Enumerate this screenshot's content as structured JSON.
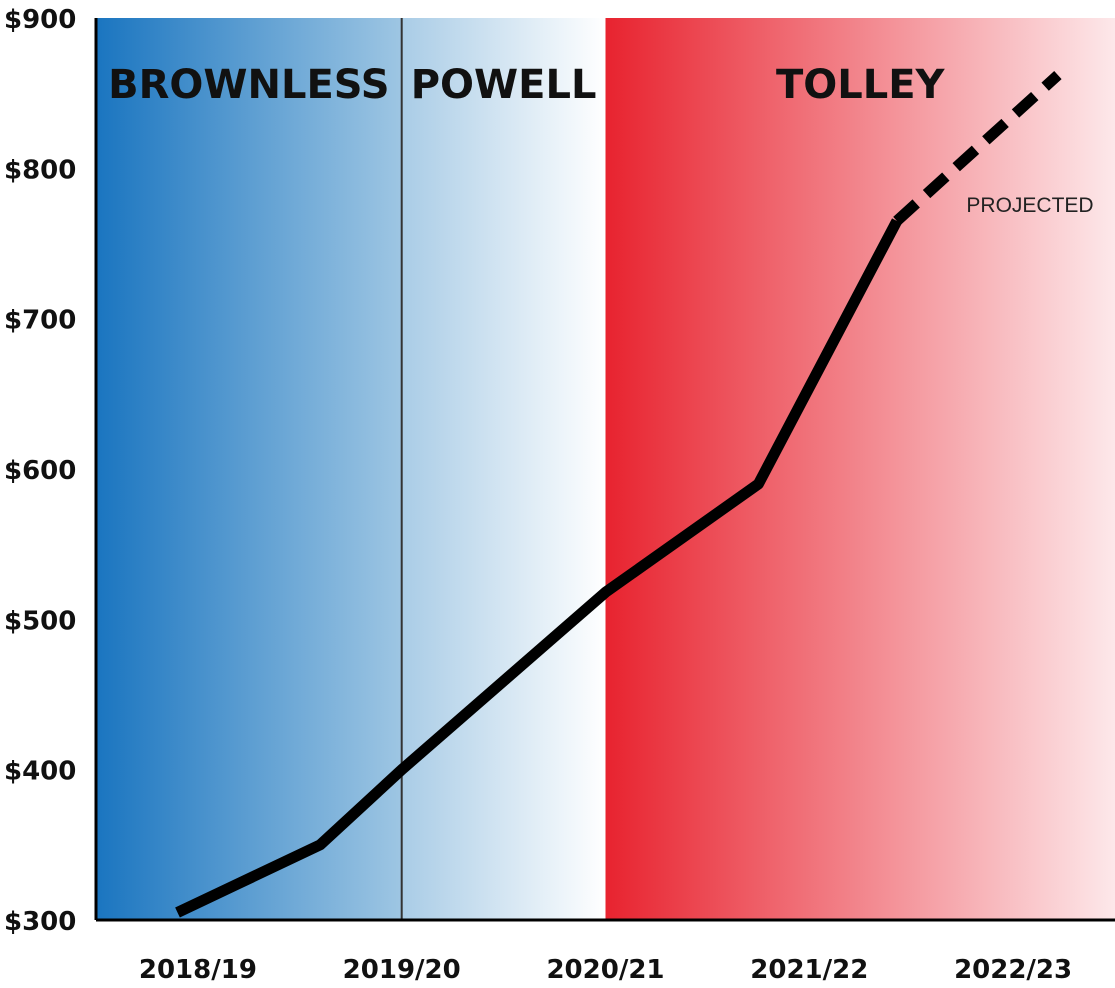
{
  "chart_data": {
    "type": "line",
    "title": "",
    "xlabel": "",
    "ylabel": "",
    "categories": [
      "2018/19",
      "2019/20",
      "2020/21",
      "2021/22",
      "2022/23"
    ],
    "y_ticks": [
      "$900",
      "$800",
      "$700",
      "$600",
      "$500",
      "$400",
      "$300"
    ],
    "ylim": [
      300,
      900
    ],
    "x_range": [
      2018.0,
      2023.0
    ],
    "grid": false,
    "series": [
      {
        "style": "solid",
        "points": [
          {
            "x": 2018.4,
            "y": 305
          },
          {
            "x": 2019.1,
            "y": 350
          },
          {
            "x": 2019.5,
            "y": 400
          },
          {
            "x": 2020.5,
            "y": 518
          },
          {
            "x": 2021.25,
            "y": 590
          },
          {
            "x": 2021.93,
            "y": 765
          }
        ]
      },
      {
        "style": "dashed",
        "annotation": "PROJECTED",
        "points": [
          {
            "x": 2021.93,
            "y": 765
          },
          {
            "x": 2022.72,
            "y": 862
          }
        ]
      }
    ],
    "eras": [
      {
        "label": "BROWNLESS",
        "x_start": 2018.0,
        "x_end": 2019.5,
        "color_start": "#1a75c0",
        "color_end": "#9ec6e3"
      },
      {
        "label": "POWELL",
        "x_start": 2019.5,
        "x_end": 2020.5,
        "color_start": "#a9cce6",
        "color_end": "#ffffff"
      },
      {
        "label": "TOLLEY",
        "x_start": 2020.5,
        "x_end": 2023.0,
        "color_start": "#e8232f",
        "color_end": "#fde8ea"
      }
    ],
    "colors": {
      "line": "#000000",
      "axis": "#000000",
      "divider": "#333333"
    }
  }
}
